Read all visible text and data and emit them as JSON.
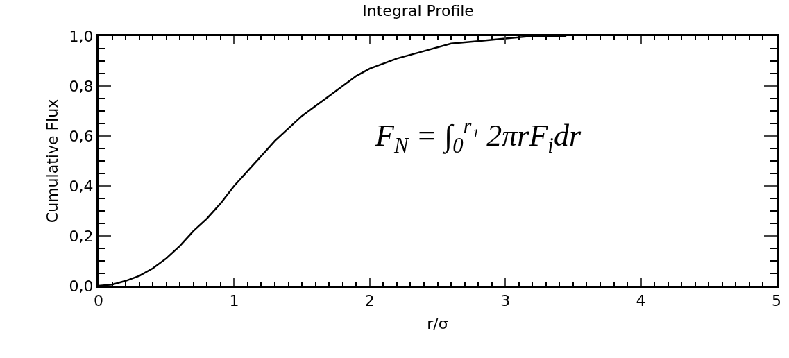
{
  "chart_data": {
    "type": "line",
    "title": "Integral Profile",
    "xlabel": "r/σ",
    "ylabel": "Cumulative Flux",
    "annotations": [
      "F$_{N}$ = ∫$_{0}$$^{r₁}$ 2πrF$_{i}$dr"
    ],
    "series": [
      {
        "color": "#000000",
        "x": [
          0,
          0.1,
          0.2,
          0.3,
          0.4,
          0.5,
          0.6,
          0.7,
          0.8,
          0.9,
          1.0,
          1.1,
          1.2,
          1.3,
          1.4,
          1.5,
          1.6,
          1.7,
          1.8,
          1.9,
          2.0,
          2.2,
          2.4,
          2.6,
          2.8,
          3.0,
          3.2,
          3.45
        ],
        "values": [
          0,
          0.005,
          0.02,
          0.04,
          0.07,
          0.11,
          0.16,
          0.22,
          0.27,
          0.33,
          0.4,
          0.46,
          0.52,
          0.58,
          0.63,
          0.68,
          0.72,
          0.76,
          0.8,
          0.84,
          0.87,
          0.91,
          0.94,
          0.97,
          0.98,
          0.99,
          1.0,
          1.0
        ]
      }
    ],
    "xlim": [
      0,
      5
    ],
    "xticks": [
      0,
      1,
      2,
      3,
      4,
      5
    ],
    "ylim": [
      0,
      1
    ],
    "yticks": [
      {
        "value": 0,
        "label": "0,0"
      },
      {
        "value": 0.2,
        "label": "0,2"
      },
      {
        "value": 0.4,
        "label": "0,4"
      },
      {
        "value": 0.6,
        "label": "0,6"
      },
      {
        "value": 0.8,
        "label": "0,8"
      },
      {
        "value": 1.0,
        "label": "1,0"
      }
    ],
    "grid": false,
    "marker": "none",
    "line_style": "solid"
  }
}
